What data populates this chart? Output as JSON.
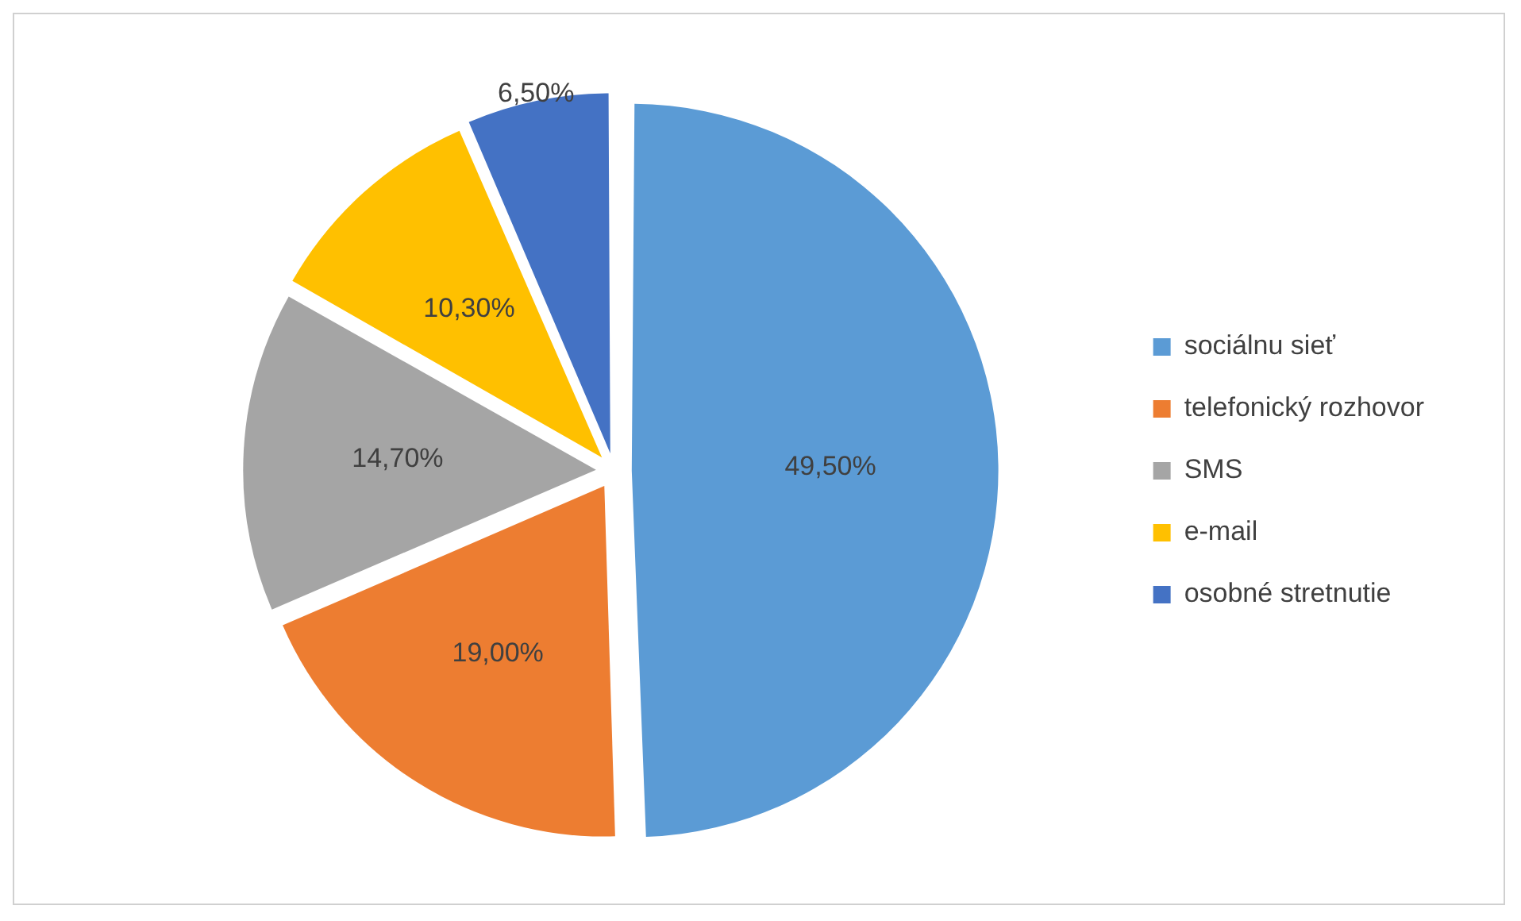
{
  "chart_data": {
    "type": "pie",
    "categories": [
      "sociálnu sieť",
      "telefonický rozhovor",
      "SMS",
      "e-mail",
      "osobné stretnutie"
    ],
    "values": [
      49.5,
      19.0,
      14.7,
      10.3,
      6.5
    ],
    "colors": [
      "#5b9bd5",
      "#ed7d31",
      "#a5a5a5",
      "#ffc000",
      "#4472c4"
    ],
    "value_labels": [
      "49,50%",
      "19,00%",
      "14,70%",
      "10,30%",
      "6,50%"
    ],
    "legend": "right"
  }
}
